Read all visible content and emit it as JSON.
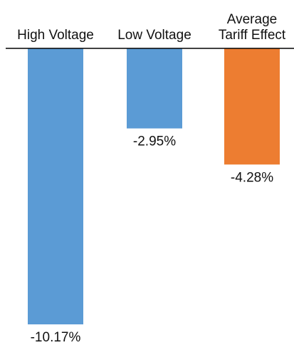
{
  "chart_data": {
    "type": "bar",
    "orientation": "vertical",
    "categories": [
      [
        "High Voltage"
      ],
      [
        "Low Voltage"
      ],
      [
        "Average",
        "Tariff Effect"
      ]
    ],
    "values": [
      -10.17,
      -2.95,
      -4.28
    ],
    "value_labels": [
      "-10.17%",
      "-2.95%",
      "-4.28%"
    ],
    "colors": [
      "#5B9BD5",
      "#5B9BD5",
      "#ED7D31"
    ],
    "title": "",
    "xlabel": "",
    "ylabel": "",
    "ylim": [
      -10.17,
      0
    ],
    "grid": false,
    "legend": "none",
    "category_axis_position": "top"
  }
}
